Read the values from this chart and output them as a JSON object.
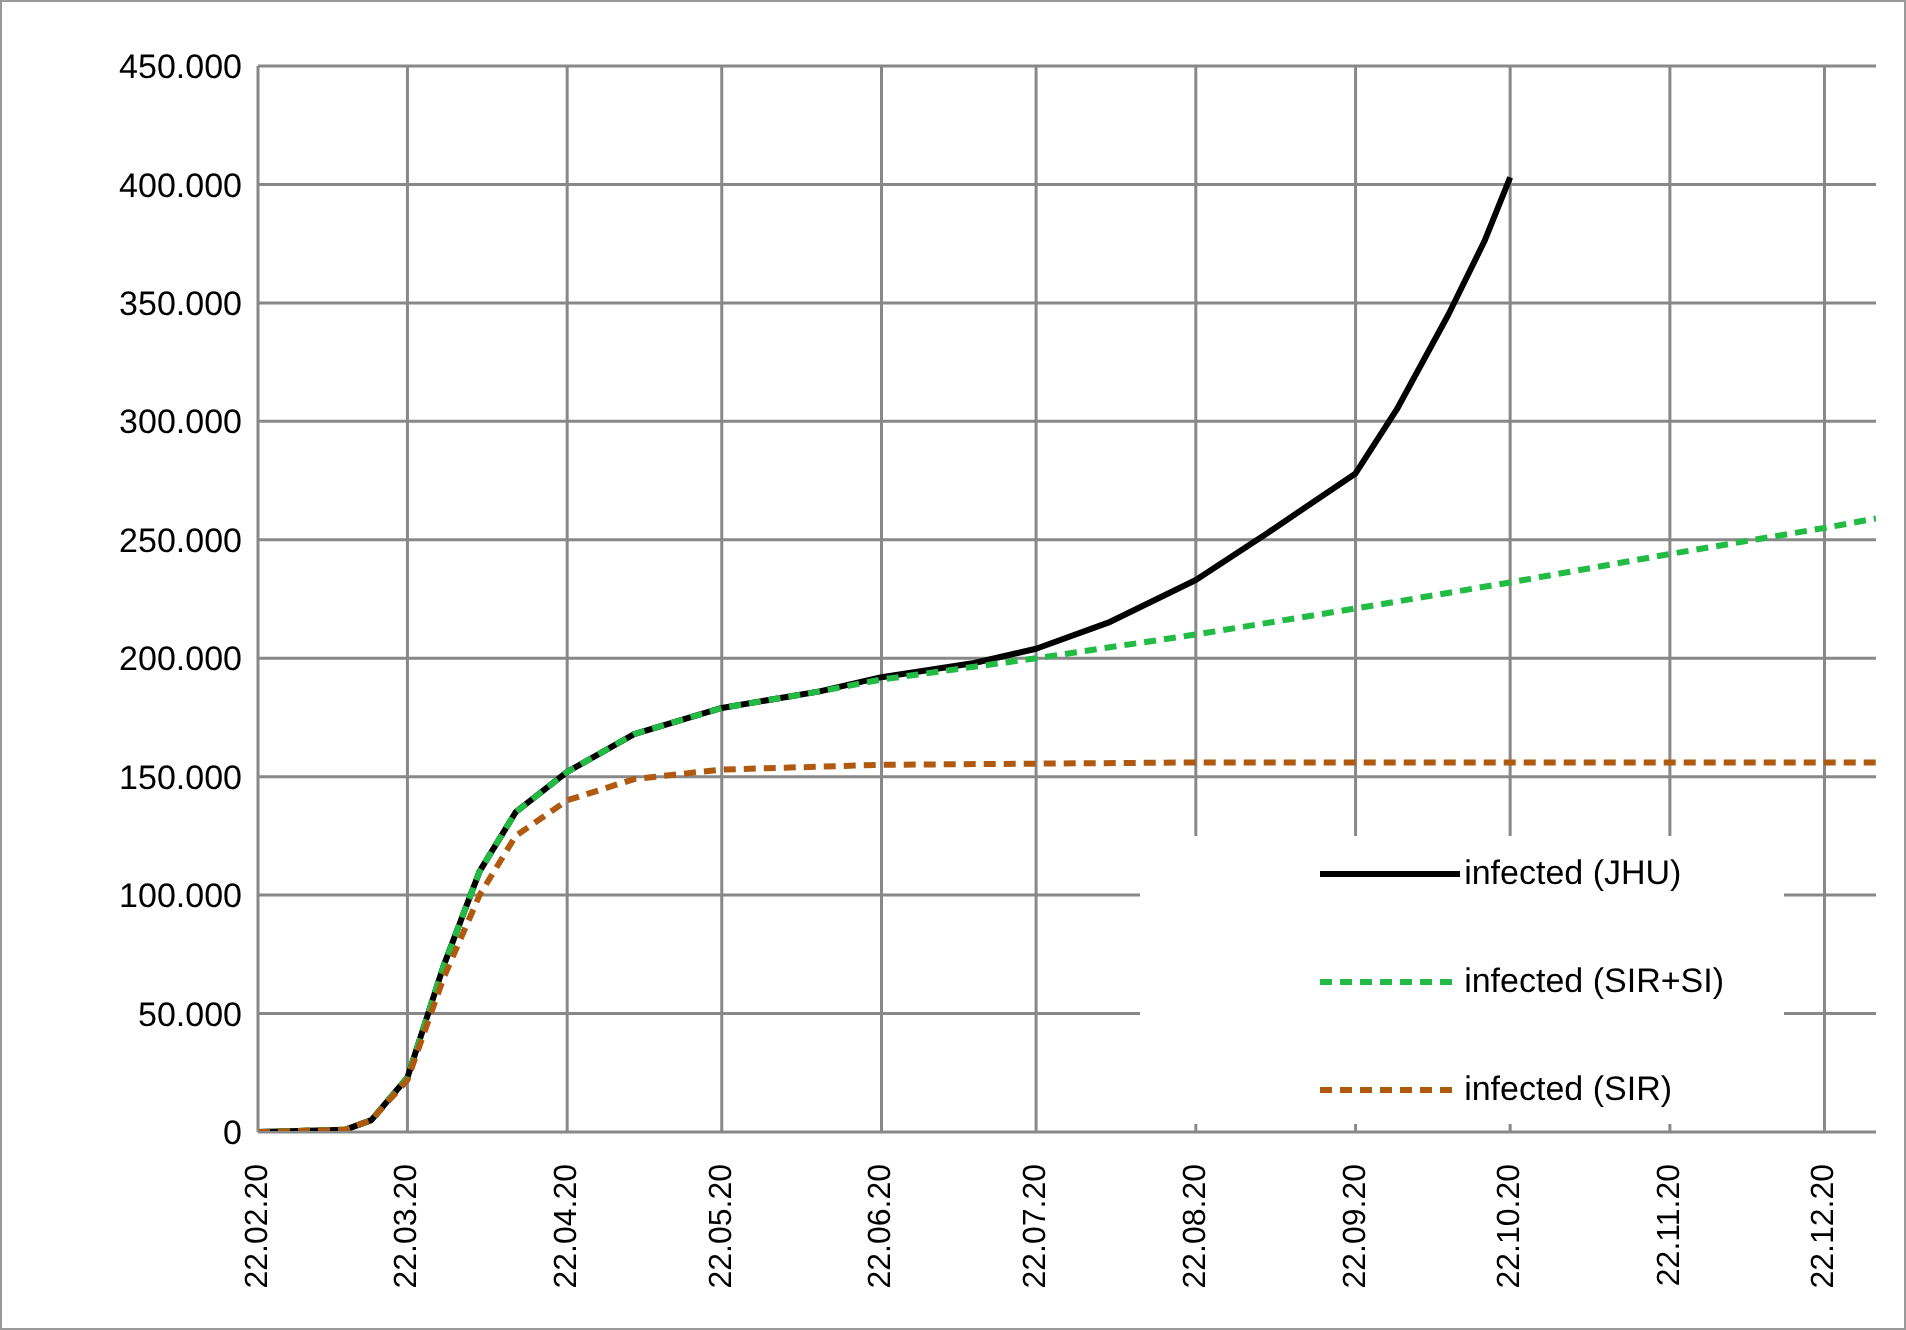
{
  "chart_data": {
    "type": "line",
    "xlim": [
      "2020-02-22",
      "2021-01-01"
    ],
    "xticks": [
      {
        "value": "2020-02-22",
        "label": "22.02.20"
      },
      {
        "value": "2020-03-22",
        "label": "22.03.20"
      },
      {
        "value": "2020-04-22",
        "label": "22.04.20"
      },
      {
        "value": "2020-05-22",
        "label": "22.05.20"
      },
      {
        "value": "2020-06-22",
        "label": "22.06.20"
      },
      {
        "value": "2020-07-22",
        "label": "22.07.20"
      },
      {
        "value": "2020-08-22",
        "label": "22.08.20"
      },
      {
        "value": "2020-09-22",
        "label": "22.09.20"
      },
      {
        "value": "2020-10-22",
        "label": "22.10.20"
      },
      {
        "value": "2020-11-22",
        "label": "22.11.20"
      },
      {
        "value": "2020-12-22",
        "label": "22.12.20"
      }
    ],
    "ylim": [
      0,
      450000
    ],
    "yticks": [
      {
        "value": 0,
        "label": "0"
      },
      {
        "value": 50000,
        "label": "50.000"
      },
      {
        "value": 100000,
        "label": "100.000"
      },
      {
        "value": 150000,
        "label": "150.000"
      },
      {
        "value": 200000,
        "label": "200.000"
      },
      {
        "value": 250000,
        "label": "250.000"
      },
      {
        "value": 300000,
        "label": "300.000"
      },
      {
        "value": 350000,
        "label": "350.000"
      },
      {
        "value": 400000,
        "label": "400.000"
      },
      {
        "value": 450000,
        "label": "450.000"
      }
    ],
    "grid": true,
    "legend": "bottom right",
    "marker": "none",
    "series": [
      {
        "name": "infected (JHU)",
        "color": "#000000",
        "line_style": "solid",
        "x": [
          "2020-02-22",
          "2020-03-10",
          "2020-03-15",
          "2020-03-22",
          "2020-03-29",
          "2020-04-05",
          "2020-04-12",
          "2020-04-22",
          "2020-05-05",
          "2020-05-22",
          "2020-06-10",
          "2020-06-22",
          "2020-07-10",
          "2020-07-22",
          "2020-08-05",
          "2020-08-22",
          "2020-09-05",
          "2020-09-22",
          "2020-09-30",
          "2020-10-10",
          "2020-10-17",
          "2020-10-22"
        ],
        "values": [
          0,
          1000,
          5000,
          23000,
          70000,
          110000,
          135000,
          152000,
          168000,
          179000,
          186000,
          192000,
          198000,
          204000,
          215000,
          233000,
          253000,
          278000,
          305000,
          345000,
          376000,
          403000
        ]
      },
      {
        "name": "infected (SIR+SI)",
        "color": "#22bb44",
        "line_style": "dashed",
        "x": [
          "2020-02-22",
          "2020-03-10",
          "2020-03-15",
          "2020-03-22",
          "2020-03-29",
          "2020-04-05",
          "2020-04-12",
          "2020-04-22",
          "2020-05-05",
          "2020-05-22",
          "2020-06-10",
          "2020-06-22",
          "2020-07-22",
          "2020-08-22",
          "2020-09-22",
          "2020-10-22",
          "2020-11-22",
          "2020-12-22",
          "2021-01-01"
        ],
        "values": [
          0,
          1000,
          5000,
          23000,
          70000,
          110000,
          135000,
          152000,
          168000,
          179000,
          186000,
          191000,
          200000,
          210000,
          221000,
          232000,
          244000,
          255000,
          259000
        ]
      },
      {
        "name": "infected (SIR)",
        "color": "#b05a10",
        "line_style": "dashed",
        "x": [
          "2020-02-22",
          "2020-03-10",
          "2020-03-15",
          "2020-03-22",
          "2020-03-29",
          "2020-04-05",
          "2020-04-12",
          "2020-04-22",
          "2020-05-05",
          "2020-05-22",
          "2020-06-22",
          "2020-08-22",
          "2021-01-01"
        ],
        "values": [
          0,
          1000,
          5000,
          22000,
          65000,
          100000,
          125000,
          140000,
          149000,
          153000,
          155000,
          156000,
          156000
        ]
      }
    ]
  }
}
